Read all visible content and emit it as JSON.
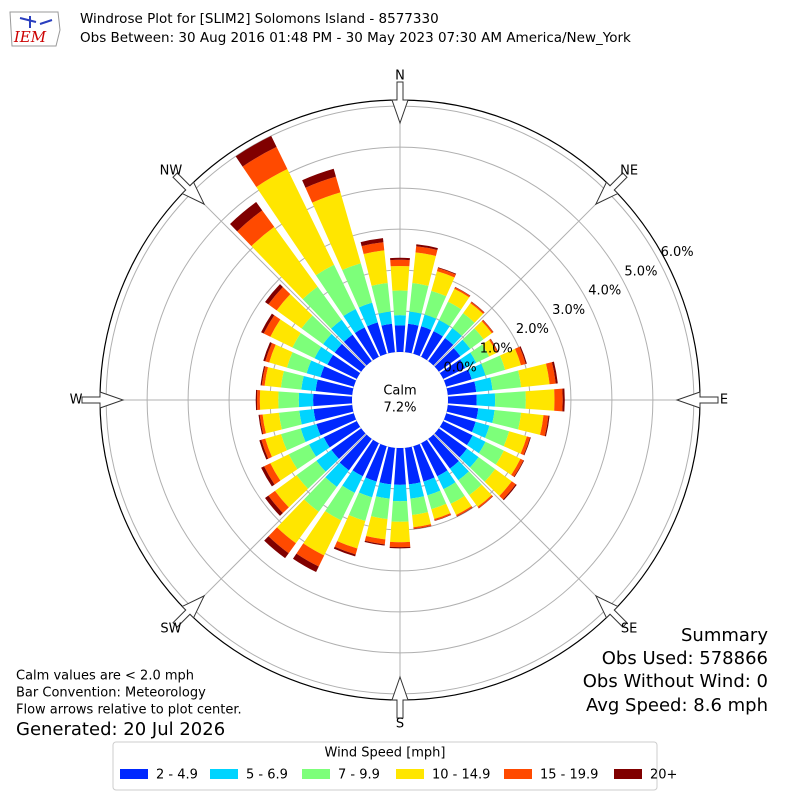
{
  "logo_text": "IEM",
  "chart_data": {
    "type": "windrose",
    "title": "Windrose Plot for [SLIM2] Solomons Island - 8577330",
    "subtitle": "Obs Between: 30 Aug 2016 01:48 PM - 30 May 2023 07:30 AM America/New_York",
    "x": [
      0,
      10,
      20,
      30,
      40,
      50,
      60,
      70,
      80,
      90,
      100,
      110,
      120,
      130,
      140,
      150,
      160,
      170,
      180,
      190,
      200,
      210,
      220,
      230,
      240,
      250,
      260,
      270,
      280,
      290,
      300,
      310,
      320,
      330,
      340,
      350
    ],
    "direction_labels": [
      "N",
      "NE",
      "E",
      "SE",
      "S",
      "SW",
      "W",
      "NW"
    ],
    "ylim": [
      0,
      6.15
    ],
    "yticks": [
      {
        "value": 0,
        "label": "0.0%"
      },
      {
        "value": 1,
        "label": "1.0%"
      },
      {
        "value": 2,
        "label": "2.0%"
      },
      {
        "value": 3,
        "label": "3.0%"
      },
      {
        "value": 4,
        "label": "4.0%"
      },
      {
        "value": 5,
        "label": "5.0%"
      },
      {
        "value": 6,
        "label": "6.0%"
      }
    ],
    "calm": {
      "label": "Calm",
      "value": 7.2,
      "value_label": "7.2%"
    },
    "legend_title": "Wind Speed [mph]",
    "series": [
      {
        "name": "2 - 4.9",
        "color": "#0028ff",
        "values": [
          0.65,
          0.7,
          0.7,
          0.7,
          0.7,
          0.65,
          0.6,
          0.65,
          0.7,
          0.7,
          0.75,
          0.75,
          0.8,
          0.85,
          0.9,
          0.9,
          0.9,
          0.9,
          0.9,
          0.9,
          0.9,
          0.9,
          0.95,
          0.9,
          0.9,
          0.95,
          0.95,
          0.95,
          0.9,
          0.85,
          0.8,
          0.8,
          0.8,
          0.8,
          0.8,
          0.7
        ]
      },
      {
        "name": "5 - 6.9",
        "color": "#00d4ff",
        "values": [
          0.25,
          0.3,
          0.3,
          0.3,
          0.3,
          0.3,
          0.3,
          0.35,
          0.4,
          0.45,
          0.4,
          0.35,
          0.35,
          0.35,
          0.35,
          0.35,
          0.35,
          0.35,
          0.4,
          0.35,
          0.4,
          0.45,
          0.5,
          0.45,
          0.4,
          0.4,
          0.35,
          0.35,
          0.35,
          0.35,
          0.35,
          0.35,
          0.45,
          0.5,
          0.5,
          0.3
        ]
      },
      {
        "name": "7 - 9.9",
        "color": "#7dff7a",
        "values": [
          0.6,
          0.7,
          0.6,
          0.5,
          0.45,
          0.4,
          0.35,
          0.5,
          0.7,
          0.75,
          0.65,
          0.5,
          0.5,
          0.5,
          0.45,
          0.4,
          0.35,
          0.4,
          0.5,
          0.5,
          0.6,
          0.75,
          0.75,
          0.6,
          0.55,
          0.5,
          0.5,
          0.5,
          0.5,
          0.5,
          0.6,
          0.65,
          1.0,
          1.2,
          1.0,
          0.7
        ]
      },
      {
        "name": "10 - 14.9",
        "color": "#ffe600",
        "values": [
          0.6,
          0.75,
          0.5,
          0.35,
          0.3,
          0.25,
          0.2,
          0.4,
          0.7,
          0.7,
          0.55,
          0.45,
          0.45,
          0.5,
          0.35,
          0.3,
          0.25,
          0.3,
          0.5,
          0.5,
          0.7,
          0.95,
          0.95,
          0.65,
          0.5,
          0.4,
          0.4,
          0.45,
          0.4,
          0.45,
          0.6,
          0.75,
          1.8,
          2.6,
          1.8,
          0.8
        ]
      },
      {
        "name": "15 - 19.9",
        "color": "#ff4a00",
        "values": [
          0.15,
          0.15,
          0.08,
          0.04,
          0.04,
          0.04,
          0.04,
          0.12,
          0.15,
          0.2,
          0.12,
          0.08,
          0.08,
          0.12,
          0.04,
          0.04,
          0.04,
          0.04,
          0.12,
          0.12,
          0.15,
          0.3,
          0.3,
          0.2,
          0.17,
          0.1,
          0.07,
          0.07,
          0.07,
          0.1,
          0.18,
          0.25,
          0.5,
          0.6,
          0.4,
          0.2
        ]
      },
      {
        "name": "20+",
        "color": "#800000",
        "values": [
          0.05,
          0.05,
          0.02,
          0.01,
          0.01,
          0.01,
          0.01,
          0.03,
          0.05,
          0.05,
          0.03,
          0.02,
          0.02,
          0.03,
          0.01,
          0.01,
          0.01,
          0.01,
          0.03,
          0.03,
          0.05,
          0.15,
          0.15,
          0.1,
          0.08,
          0.05,
          0.03,
          0.03,
          0.03,
          0.05,
          0.07,
          0.1,
          0.25,
          0.3,
          0.2,
          0.1
        ]
      }
    ]
  },
  "notes": [
    "Calm values are < 2.0 mph",
    "Bar Convention: Meteorology",
    "Flow arrows relative to plot center."
  ],
  "generated": "Generated: 20 Jul 2026",
  "summary": [
    "Summary",
    "Obs Used: 578866",
    "Obs Without Wind: 0",
    "Avg Speed: 8.6 mph"
  ]
}
